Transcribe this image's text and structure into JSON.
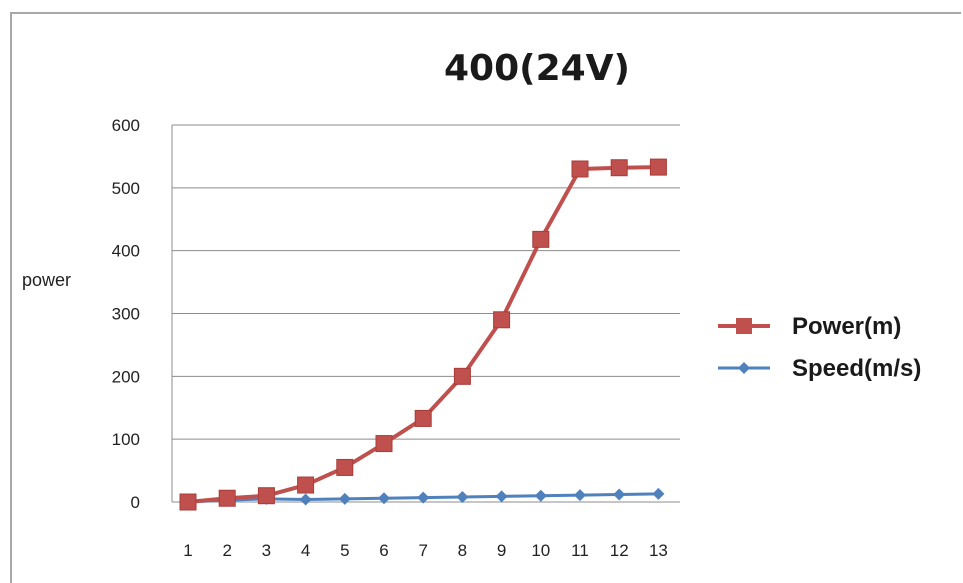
{
  "chart_data": {
    "type": "line",
    "title": "400(24V)",
    "xlabel": "",
    "ylabel": "power",
    "categories": [
      "1",
      "2",
      "3",
      "4",
      "5",
      "6",
      "7",
      "8",
      "9",
      "10",
      "11",
      "12",
      "13"
    ],
    "ylim": [
      0,
      600
    ],
    "yticks": [
      0,
      100,
      200,
      300,
      400,
      500,
      600
    ],
    "grid": true,
    "legend_position": "right",
    "series": [
      {
        "name": "Power(m)",
        "color": "#c0504d",
        "marker": "square",
        "values": [
          0,
          6,
          10,
          27,
          55,
          93,
          133,
          200,
          290,
          418,
          530,
          532,
          533
        ]
      },
      {
        "name": "Speed(m/s)",
        "color": "#4f81bd",
        "marker": "diamond",
        "values": [
          0,
          3,
          5,
          4,
          5,
          6,
          7,
          8,
          9,
          10,
          11,
          12,
          13
        ]
      }
    ]
  }
}
